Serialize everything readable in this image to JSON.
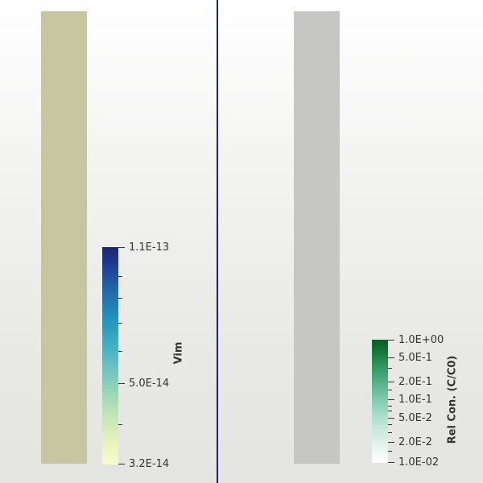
{
  "left_view": {
    "column_color": "#c8c6a0",
    "colorbar": {
      "title": "Vim",
      "labels": [
        "1.1E-13",
        "5.0E-14",
        "3.2E-14"
      ]
    }
  },
  "right_view": {
    "column_color": "#c6c6c3",
    "colorbar": {
      "title": "Rel Con. (C/C0)",
      "labels": [
        "1.0E+00",
        "5.0E-1",
        "2.0E-1",
        "1.0E-1",
        "5.0E-2",
        "2.0E-2",
        "1.0E-02"
      ]
    }
  },
  "divider_color": "#1c1f8f"
}
